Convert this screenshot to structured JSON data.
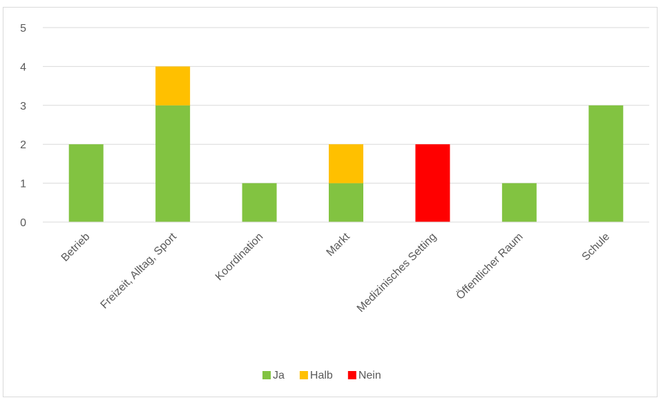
{
  "chart_data": {
    "type": "bar",
    "stacked": true,
    "title": "",
    "xlabel": "",
    "ylabel": "",
    "ylim": [
      0,
      5
    ],
    "yticks": [
      0,
      1,
      2,
      3,
      4,
      5
    ],
    "grid": true,
    "legend_position": "bottom",
    "categories": [
      "Betrieb",
      "Freizeit, Alltag, Sport",
      "Koordination",
      "Markt",
      "Medizinisches Setting",
      "Öffentlicher Raum",
      "Schule"
    ],
    "series": [
      {
        "name": "Ja",
        "color": "#82c341",
        "values": [
          2,
          3,
          1,
          1,
          0,
          1,
          3
        ]
      },
      {
        "name": "Halb",
        "color": "#ffc000",
        "values": [
          0,
          1,
          0,
          1,
          0,
          0,
          0
        ]
      },
      {
        "name": "Nein",
        "color": "#ff0000",
        "values": [
          0,
          0,
          0,
          0,
          2,
          0,
          0
        ]
      }
    ]
  }
}
